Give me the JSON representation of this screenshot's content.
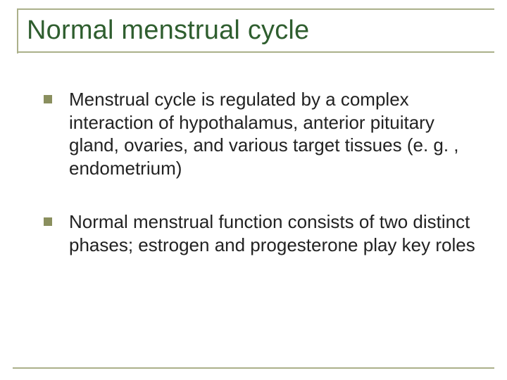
{
  "slide": {
    "title": "Normal menstrual cycle",
    "title_color": "#2f5e2f",
    "title_fontsize": 38,
    "rule_color": "#abb08a",
    "bullet_color": "#8a8f5e",
    "body_color": "#222222",
    "body_fontsize": 26,
    "background": "#ffffff",
    "bullets": [
      "Menstrual cycle is regulated by a complex interaction of hypothalamus, anterior pituitary gland, ovaries, and various target tissues (e. g. , endometrium)",
      "Normal menstrual function consists of two distinct phases; estrogen and progesterone play key roles"
    ]
  }
}
